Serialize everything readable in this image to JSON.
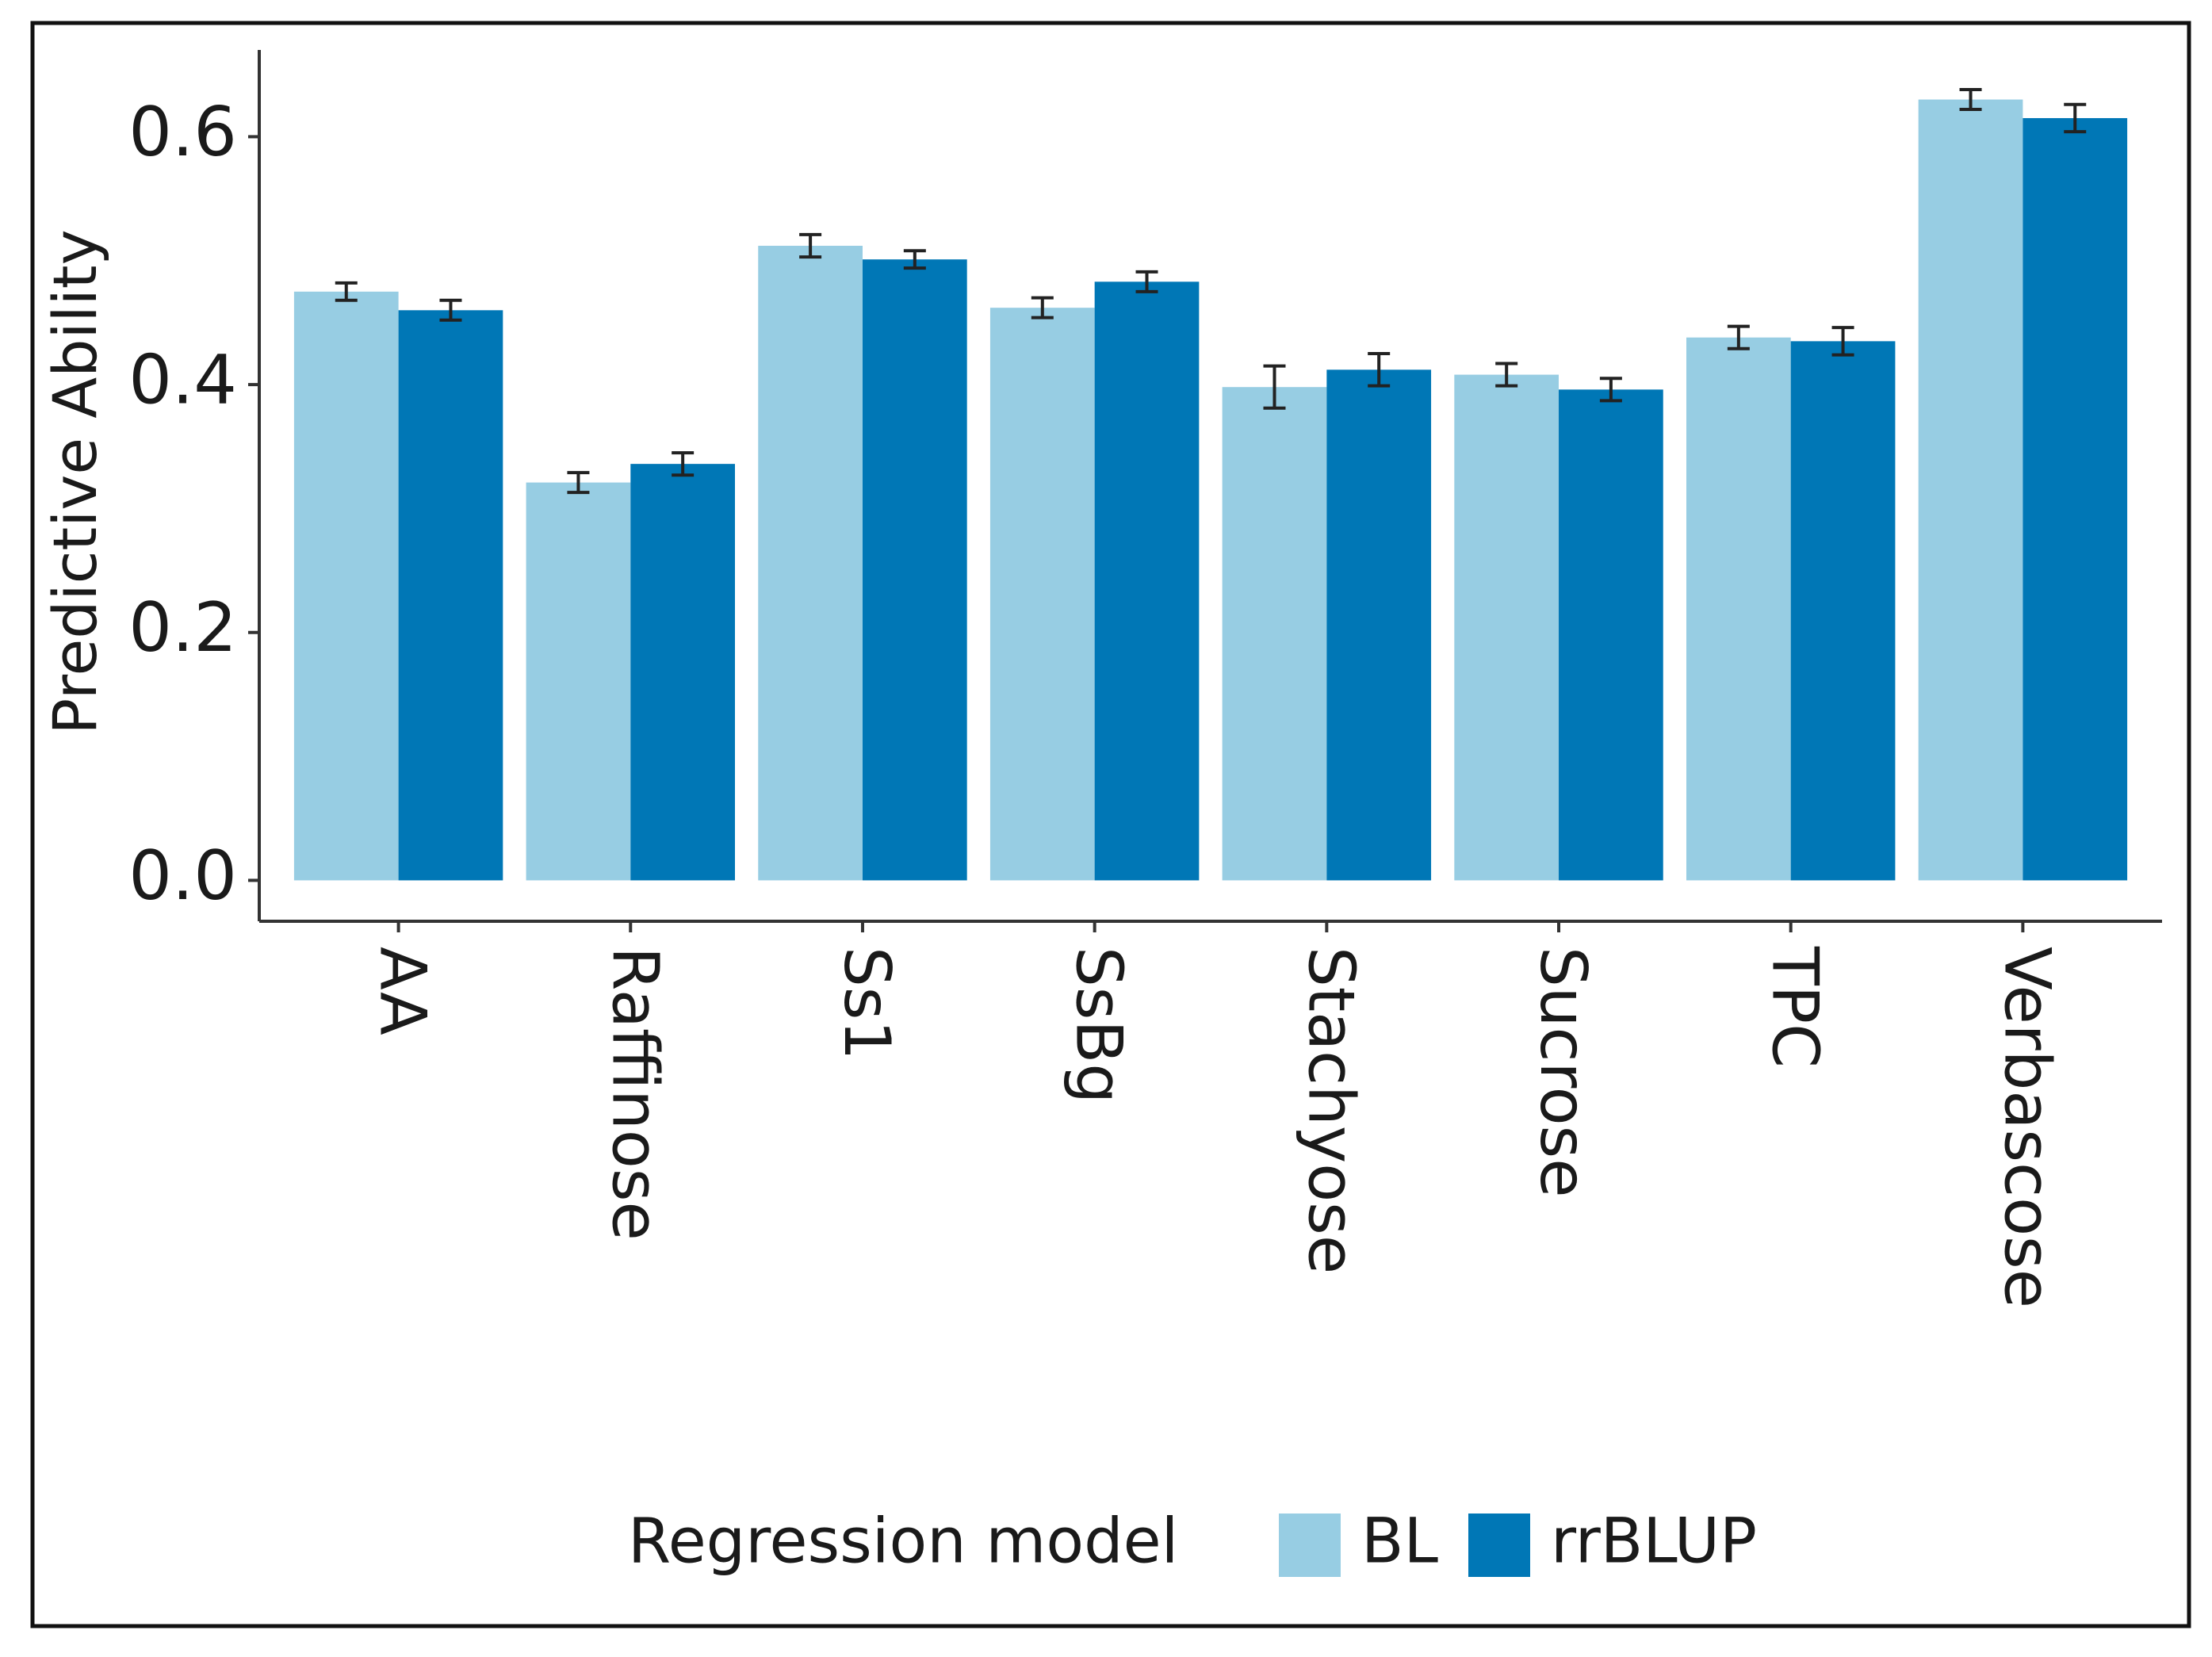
{
  "chart_data": {
    "type": "bar",
    "y_label": "Predictive Ability",
    "categories": [
      "AA",
      "Raffinose",
      "Ss1",
      "SsBg",
      "Stachyose",
      "Sucrose",
      "TPC",
      "Verbascose"
    ],
    "series": [
      {
        "name": "BL",
        "color": "#97cde3",
        "values": [
          0.475,
          0.321,
          0.512,
          0.462,
          0.398,
          0.408,
          0.438,
          0.63
        ],
        "errors": [
          0.007,
          0.008,
          0.009,
          0.008,
          0.017,
          0.009,
          0.009,
          0.008
        ]
      },
      {
        "name": "rrBLUP",
        "color": "#0077b6",
        "values": [
          0.46,
          0.336,
          0.501,
          0.483,
          0.412,
          0.396,
          0.435,
          0.615
        ],
        "errors": [
          0.008,
          0.009,
          0.007,
          0.008,
          0.013,
          0.009,
          0.011,
          0.011
        ]
      }
    ],
    "legend_title": "Regression model",
    "legend_position": "bottom",
    "ylim": [
      -0.033,
      0.67
    ],
    "yticks": [
      {
        "value": 0,
        "label": "0.0"
      },
      0.2,
      0.4,
      0.6
    ],
    "grid": false
  }
}
